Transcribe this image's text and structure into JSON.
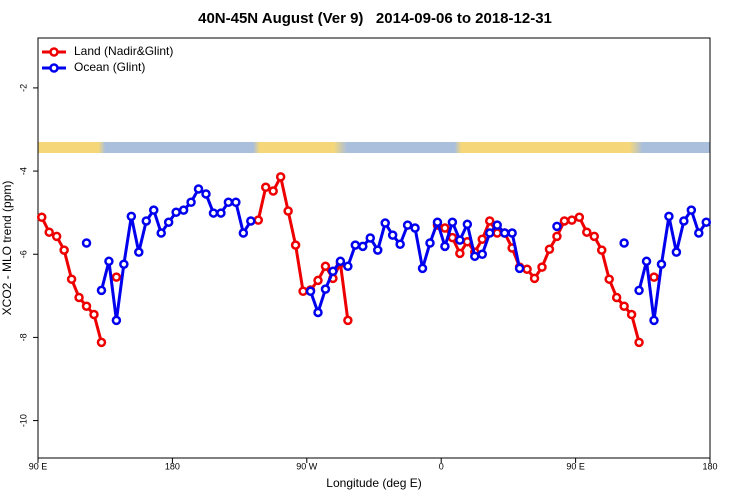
{
  "chart_data": {
    "type": "line",
    "title": "40N-45N August (Ver 9)   2014-09-06 to 2018-12-31",
    "x_label": "Longitude (deg E)",
    "y_label": "XCO2 - MLO trend (ppm)",
    "legend": "upper left",
    "xlim": [
      90,
      540
    ],
    "ylim": [
      -10.9,
      -0.8
    ],
    "xticks": [
      {
        "value": 90,
        "label": "90 E"
      },
      {
        "value": 180,
        "label": "180"
      },
      {
        "value": 270,
        "label": "90 W"
      },
      {
        "value": 360,
        "label": "0"
      },
      {
        "value": 450,
        "label": "90 E"
      },
      {
        "value": 540,
        "label": "180"
      }
    ],
    "yticks": [
      -2,
      -4,
      -6,
      -8,
      -10
    ],
    "x": [
      92.5,
      97.5,
      102.5,
      107.5,
      112.5,
      117.5,
      122.5,
      127.5,
      132.5,
      137.5,
      142.5,
      147.5,
      152.5,
      157.5,
      162.5,
      167.5,
      172.5,
      177.5,
      182.5,
      187.5,
      192.5,
      197.5,
      202.5,
      207.5,
      212.5,
      217.5,
      222.5,
      227.5,
      232.5,
      237.5,
      242.5,
      247.5,
      252.5,
      257.5,
      262.5,
      267.5,
      272.5,
      277.5,
      282.5,
      287.5,
      292.5,
      297.5,
      302.5,
      307.5,
      312.5,
      317.5,
      322.5,
      327.5,
      332.5,
      337.5,
      342.5,
      347.5,
      352.5,
      357.5,
      362.5,
      367.5,
      372.5,
      377.5,
      382.5,
      387.5,
      392.5,
      397.5,
      402.5,
      407.5,
      412.5,
      417.5,
      422.5,
      427.5,
      432.5,
      437.5,
      442.5,
      447.5,
      452.5,
      457.5,
      462.5,
      467.5,
      472.5,
      477.5,
      482.5,
      487.5,
      492.5,
      497.5,
      502.5,
      507.5,
      512.5,
      517.5,
      522.5,
      527.5,
      532.5,
      537.5
    ],
    "series": [
      {
        "name": "Land (Nadir&Glint)",
        "color": "#ee0000",
        "values": [
          -5.11,
          -5.47,
          -5.57,
          -5.9,
          -6.6,
          -7.04,
          -7.25,
          -7.45,
          -8.12,
          null,
          -6.55,
          null,
          null,
          null,
          null,
          null,
          null,
          null,
          null,
          null,
          null,
          null,
          null,
          null,
          null,
          null,
          null,
          null,
          null,
          -5.18,
          -4.39,
          -4.48,
          -4.14,
          -4.96,
          -5.78,
          -6.89,
          -6.86,
          -6.63,
          -6.29,
          -6.58,
          -6.22,
          -7.59,
          null,
          null,
          null,
          null,
          null,
          null,
          null,
          null,
          null,
          null,
          null,
          -5.3,
          -5.37,
          -5.6,
          -5.98,
          -5.7,
          -5.95,
          -5.64,
          -5.2,
          -5.49,
          -5.49,
          -5.85,
          -6.31,
          -6.36,
          -6.58,
          -6.31,
          -5.88,
          -5.57,
          -5.2,
          -5.18,
          -5.11,
          -5.47,
          -5.57,
          -5.9,
          -6.6,
          -7.04,
          -7.25,
          -7.45,
          -8.12,
          null,
          -6.55,
          null,
          null,
          null,
          null,
          null,
          null,
          null
        ]
      },
      {
        "name": "Ocean (Glint)",
        "color": "#0000ee",
        "values": [
          null,
          null,
          null,
          null,
          null,
          null,
          -5.73,
          null,
          -6.87,
          -6.17,
          -7.59,
          -6.24,
          -5.09,
          -5.95,
          -5.2,
          -4.94,
          -5.49,
          -5.23,
          -4.99,
          -4.94,
          -4.75,
          -4.43,
          -4.55,
          -5.01,
          -5.01,
          -4.75,
          -4.75,
          -5.49,
          -5.2,
          null,
          null,
          null,
          null,
          null,
          null,
          null,
          -6.89,
          -7.4,
          -6.84,
          -6.41,
          -6.17,
          -6.29,
          -5.78,
          -5.81,
          -5.61,
          -5.9,
          -5.25,
          -5.54,
          -5.76,
          -5.3,
          -5.37,
          -6.34,
          -5.73,
          -5.23,
          -5.81,
          -5.23,
          -5.66,
          -5.28,
          -6.05,
          -6.0,
          -5.49,
          -5.3,
          -5.49,
          -5.49,
          -6.34,
          null,
          null,
          null,
          null,
          -5.33,
          null,
          null,
          null,
          null,
          null,
          null,
          null,
          null,
          -5.73,
          null,
          -6.87,
          -6.17,
          -7.59,
          -6.24,
          -5.09,
          -5.95,
          -5.2,
          -4.94,
          -5.49,
          -5.23
        ]
      }
    ]
  }
}
